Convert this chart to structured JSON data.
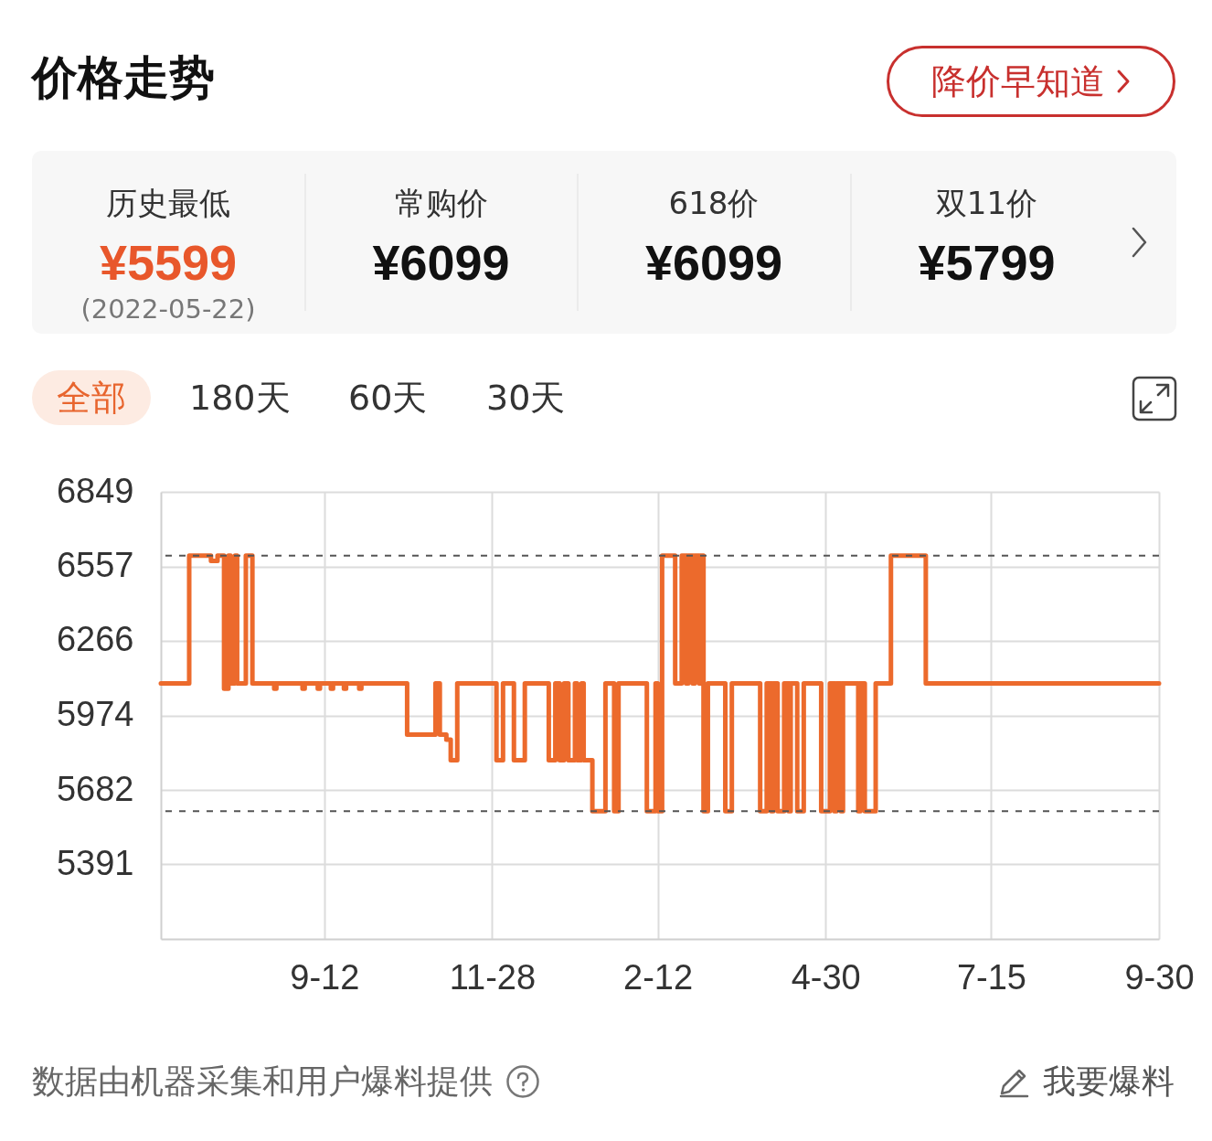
{
  "chart_data": {
    "type": "step",
    "title": "价格走势",
    "annotations": [
      "降价早知道",
      "历史最低",
      "¥5599",
      "(2022-05-22)",
      "常购价",
      "¥6099",
      "618价",
      "¥6099",
      "双11价",
      "¥5799",
      "全部",
      "180天",
      "60天",
      "30天",
      "数据由机器采集和用户爆料提供",
      "我要爆料"
    ],
    "x": [
      "2021-06-29",
      "2021-07-12",
      "2021-07-22",
      "2021-07-25",
      "2021-07-28",
      "2021-07-30",
      "2021-07-31",
      "2021-08-02",
      "2021-08-03",
      "2021-08-07",
      "2021-08-10",
      "2021-08-20",
      "2021-08-21",
      "2021-09-02",
      "2021-09-03",
      "2021-09-09",
      "2021-09-10",
      "2021-09-15",
      "2021-09-16",
      "2021-09-21",
      "2021-09-22",
      "2021-09-28",
      "2021-09-29",
      "2021-10-20",
      "2021-11-02",
      "2021-11-04",
      "2021-11-07",
      "2021-11-09",
      "2021-11-12",
      "2021-11-30",
      "2021-12-03",
      "2021-12-08",
      "2021-12-13",
      "2021-12-24",
      "2021-12-27",
      "2021-12-29",
      "2021-12-31",
      "2022-01-02",
      "2022-01-05",
      "2022-01-06",
      "2022-01-08",
      "2022-01-09",
      "2022-01-13",
      "2022-01-19",
      "2022-01-23",
      "2022-01-25",
      "2022-02-07",
      "2022-02-11",
      "2022-02-12",
      "2022-02-14",
      "2022-02-20",
      "2022-02-23",
      "2022-02-25",
      "2022-02-26",
      "2022-02-28",
      "2022-03-01",
      "2022-03-03",
      "2022-03-04",
      "2022-03-05",
      "2022-03-07",
      "2022-03-15",
      "2022-03-18",
      "2022-03-31",
      "2022-04-03",
      "2022-04-05",
      "2022-04-06",
      "2022-04-08",
      "2022-04-11",
      "2022-04-13",
      "2022-04-14",
      "2022-04-17",
      "2022-04-20",
      "2022-04-28",
      "2022-05-02",
      "2022-05-04",
      "2022-05-05",
      "2022-05-07",
      "2022-05-08",
      "2022-05-15",
      "2022-05-16",
      "2022-05-18",
      "2022-05-23",
      "2022-05-30",
      "2022-06-15",
      "2022-09-30"
    ],
    "series": [
      {
        "color": "#ec6a2c",
        "values": [
          6099,
          6599,
          6579,
          6599,
          6079,
          6599,
          6099,
          6599,
          6099,
          6599,
          6099,
          6079,
          6099,
          6079,
          6099,
          6079,
          6099,
          6079,
          6099,
          6079,
          6099,
          6079,
          6099,
          5899,
          6099,
          5899,
          5879,
          5799,
          6099,
          5799,
          6099,
          5799,
          6099,
          5799,
          6099,
          5799,
          6099,
          5799,
          6099,
          5799,
          6099,
          5799,
          5599,
          6099,
          5599,
          6099,
          5599,
          6099,
          5599,
          6599,
          6099,
          6599,
          6099,
          6599,
          6099,
          6599,
          6099,
          6599,
          5599,
          6099,
          5599,
          6099,
          5599,
          6099,
          5599,
          6099,
          5599,
          6099,
          5599,
          6099,
          5599,
          6099,
          5599,
          6099,
          5599,
          6099,
          5599,
          6099,
          5599,
          6099,
          5599,
          6099,
          6599,
          6099,
          6099
        ]
      }
    ],
    "xlim": [
      "2021-06-29",
      "2022-09-30"
    ],
    "xticks": [
      {
        "value": "2021-09-12",
        "label": "9-12"
      },
      {
        "value": "2021-11-28",
        "label": "11-28"
      },
      {
        "value": "2022-02-12",
        "label": "2-12"
      },
      {
        "value": "2022-04-30",
        "label": "4-30"
      },
      {
        "value": "2022-07-15",
        "label": "7-15"
      },
      {
        "value": "2022-09-30",
        "label": "9-30"
      }
    ],
    "ylim": [
      5099,
      6849
    ],
    "yticks": [
      5391,
      5682,
      5974,
      6266,
      6557,
      6849
    ],
    "grid": true,
    "ref_lines": [
      {
        "axis": "y",
        "value": 6599,
        "color": "#555555",
        "line_style": "dashed"
      },
      {
        "axis": "y",
        "value": 5599,
        "color": "#555555",
        "line_style": "dashed"
      }
    ]
  }
}
